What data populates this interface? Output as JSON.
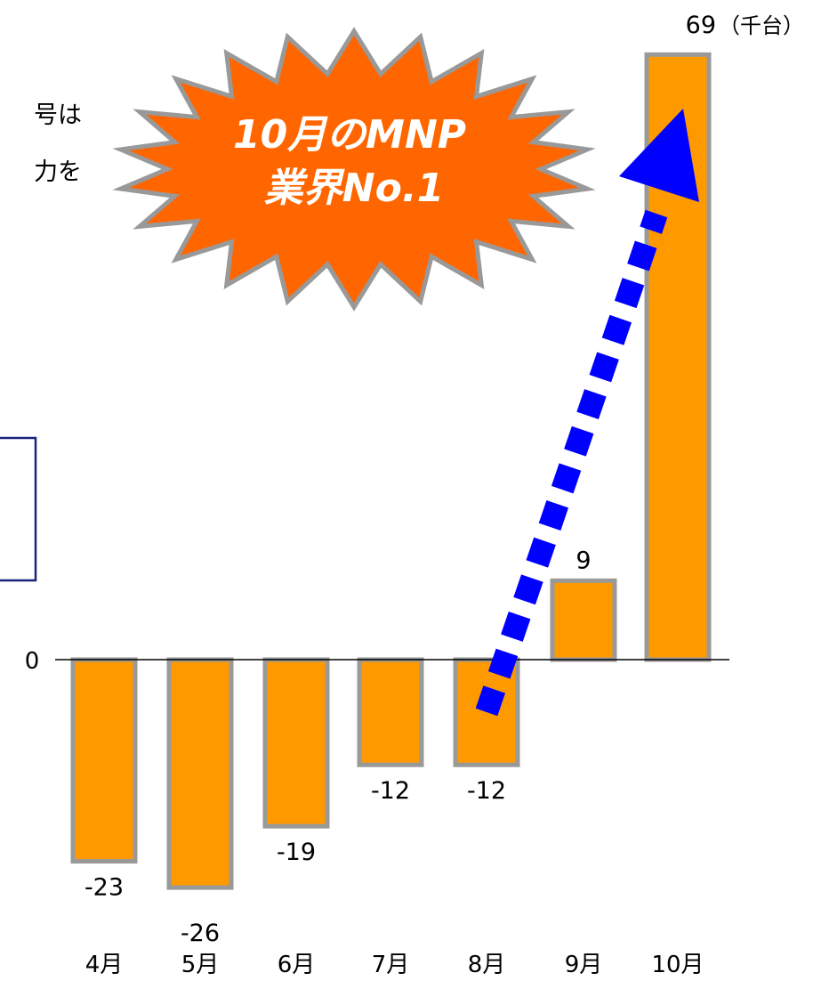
{
  "left_text": {
    "line1": "号は",
    "line2": "力を"
  },
  "callout": {
    "line1": "10月のMNP",
    "line2": "業界No.1"
  },
  "chart_data": {
    "type": "bar",
    "categories": [
      "4月",
      "5月",
      "6月",
      "7月",
      "8月",
      "9月",
      "10月"
    ],
    "values": [
      -23,
      -26,
      -19,
      -12,
      -12,
      9,
      69
    ],
    "value_labels": [
      "-23",
      "-26",
      "-19",
      "-12",
      "-12",
      "9",
      "69"
    ],
    "unit": "（千台）",
    "zero_label": "0",
    "ylim": [
      -30,
      70
    ],
    "grid": false,
    "colors": {
      "bar_fill": "#FF9900",
      "bar_stroke": "#999999",
      "arrow": "#0000FF",
      "burst_fill": "#FF6600",
      "burst_stroke": "#999999"
    }
  }
}
